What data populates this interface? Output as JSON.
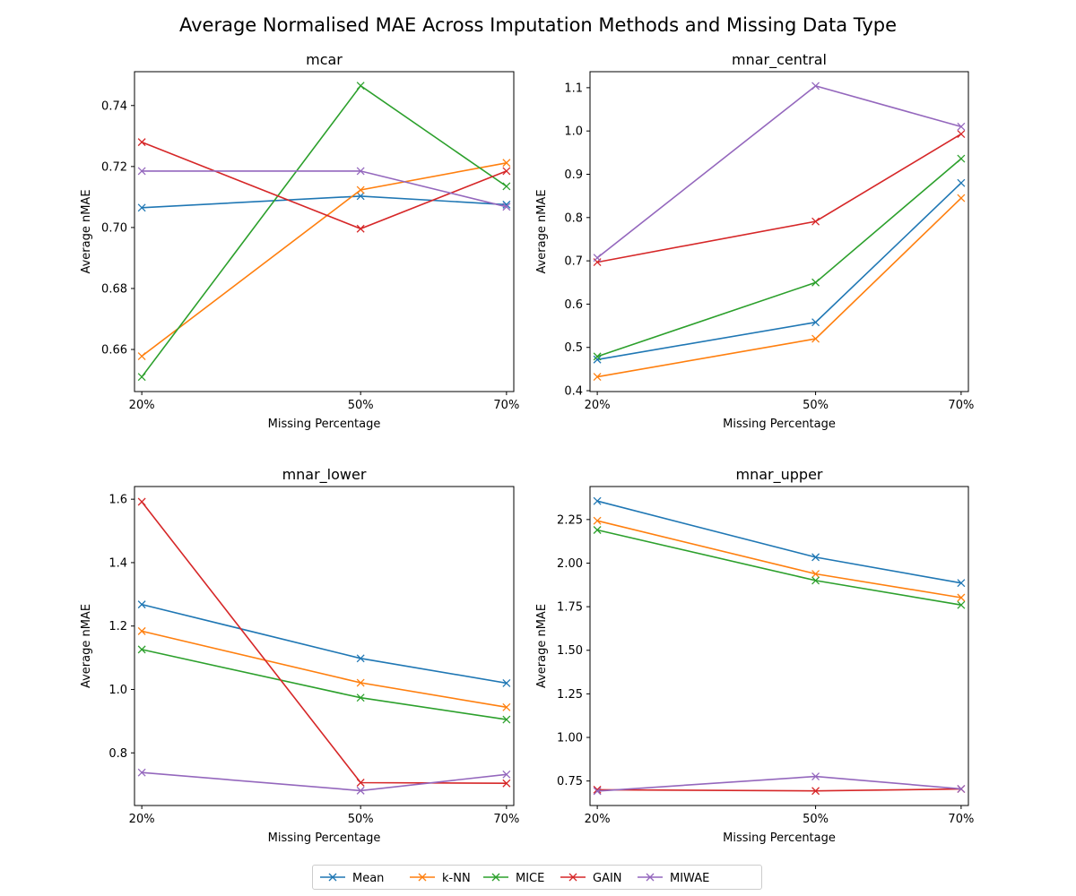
{
  "figure_title": "Average Normalised MAE Across Imputation Methods and Missing Data Type",
  "colors": {
    "Mean": "#1f77b4",
    "k-NN": "#ff7f0e",
    "MICE": "#2ca02c",
    "GAIN": "#d62728",
    "MIWAE": "#9467bd"
  },
  "legend": [
    "Mean",
    "k-NN",
    "MICE",
    "GAIN",
    "MIWAE"
  ],
  "chart_data": [
    {
      "type": "line",
      "title": "mcar",
      "xlabel": "Missing Percentage",
      "ylabel": "Average nMAE",
      "x": [
        20,
        50,
        70
      ],
      "x_tick_labels": [
        "20%",
        "50%",
        "70%"
      ],
      "xlim": [
        19.0,
        71.0
      ],
      "ylim": [
        0.6462,
        0.7511
      ],
      "y_ticks": [
        "0.66",
        "0.68",
        "0.70",
        "0.72",
        "0.74"
      ],
      "series": [
        {
          "name": "Mean",
          "values": [
            0.7065,
            0.7103,
            0.7075
          ]
        },
        {
          "name": "k-NN",
          "values": [
            0.6578,
            0.7123,
            0.7212
          ]
        },
        {
          "name": "MICE",
          "values": [
            0.651,
            0.7465,
            0.7135
          ]
        },
        {
          "name": "GAIN",
          "values": [
            0.728,
            0.6996,
            0.7185
          ]
        },
        {
          "name": "MIWAE",
          "values": [
            0.7185,
            0.7185,
            0.7068
          ]
        }
      ]
    },
    {
      "type": "line",
      "title": "mnar_central",
      "xlabel": "Missing Percentage",
      "ylabel": "Average nMAE",
      "x": [
        20,
        50,
        70
      ],
      "x_tick_labels": [
        "20%",
        "50%",
        "70%"
      ],
      "xlim": [
        19.0,
        71.0
      ],
      "ylim": [
        0.398,
        1.137
      ],
      "y_ticks": [
        "0.4",
        "0.5",
        "0.6",
        "0.7",
        "0.8",
        "0.9",
        "1.0",
        "1.1"
      ],
      "series": [
        {
          "name": "Mean",
          "values": [
            0.472,
            0.558,
            0.88
          ]
        },
        {
          "name": "k-NN",
          "values": [
            0.432,
            0.52,
            0.845
          ]
        },
        {
          "name": "MICE",
          "values": [
            0.479,
            0.65,
            0.936
          ]
        },
        {
          "name": "GAIN",
          "values": [
            0.697,
            0.791,
            0.993
          ]
        },
        {
          "name": "MIWAE",
          "values": [
            0.707,
            1.104,
            1.01
          ]
        }
      ]
    },
    {
      "type": "line",
      "title": "mnar_lower",
      "xlabel": "Missing Percentage",
      "ylabel": "Average nMAE",
      "x": [
        20,
        50,
        70
      ],
      "x_tick_labels": [
        "20%",
        "50%",
        "70%"
      ],
      "xlim": [
        19.0,
        71.0
      ],
      "ylim": [
        0.634,
        1.64
      ],
      "y_ticks": [
        "0.8",
        "1.0",
        "1.2",
        "1.4",
        "1.6"
      ],
      "series": [
        {
          "name": "Mean",
          "values": [
            1.268,
            1.098,
            1.02
          ]
        },
        {
          "name": "k-NN",
          "values": [
            1.184,
            1.021,
            0.944
          ]
        },
        {
          "name": "MICE",
          "values": [
            1.126,
            0.974,
            0.905
          ]
        },
        {
          "name": "GAIN",
          "values": [
            1.592,
            0.706,
            0.704
          ]
        },
        {
          "name": "MIWAE",
          "values": [
            0.738,
            0.681,
            0.732
          ]
        }
      ]
    },
    {
      "type": "line",
      "title": "mnar_upper",
      "xlabel": "Missing Percentage",
      "ylabel": "Average nMAE",
      "x": [
        20,
        50,
        70
      ],
      "x_tick_labels": [
        "20%",
        "50%",
        "70%"
      ],
      "xlim": [
        19.0,
        71.0
      ],
      "ylim": [
        0.6094,
        2.4394
      ],
      "y_ticks": [
        "0.75",
        "1.00",
        "1.25",
        "1.50",
        "1.75",
        "2.00",
        "2.25"
      ],
      "series": [
        {
          "name": "Mean",
          "values": [
            2.356,
            2.034,
            1.886
          ]
        },
        {
          "name": "k-NN",
          "values": [
            2.243,
            1.938,
            1.802
          ]
        },
        {
          "name": "MICE",
          "values": [
            2.19,
            1.9,
            1.76
          ]
        },
        {
          "name": "GAIN",
          "values": [
            0.7,
            0.693,
            0.704
          ]
        },
        {
          "name": "MIWAE",
          "values": [
            0.692,
            0.776,
            0.705
          ]
        }
      ]
    }
  ]
}
